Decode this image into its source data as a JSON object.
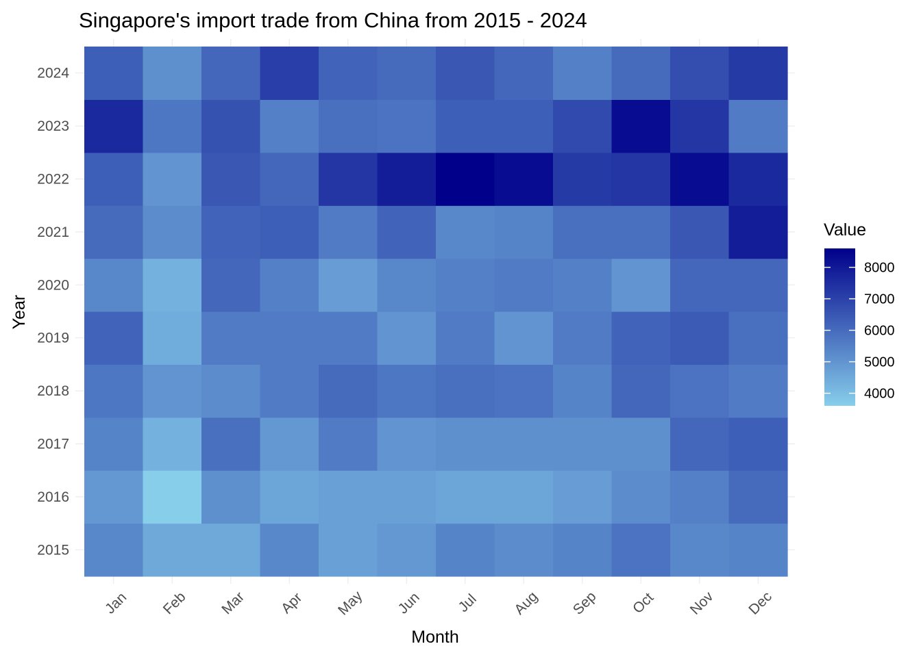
{
  "chart_data": {
    "type": "heatmap",
    "title": "Singapore's import trade from China from 2015 - 2024",
    "xlabel": "Month",
    "ylabel": "Year",
    "legend_title": "Value",
    "legend_position": "right",
    "x": [
      "Jan",
      "Feb",
      "Mar",
      "Apr",
      "May",
      "Jun",
      "Jul",
      "Aug",
      "Sep",
      "Oct",
      "Nov",
      "Dec"
    ],
    "y": [
      "2015",
      "2016",
      "2017",
      "2018",
      "2019",
      "2020",
      "2021",
      "2022",
      "2023",
      "2024"
    ],
    "values": [
      [
        5300,
        4500,
        4500,
        5300,
        4700,
        4900,
        5400,
        5200,
        5400,
        5800,
        5300,
        5400
      ],
      [
        4900,
        3600,
        5100,
        4600,
        4700,
        4700,
        4600,
        4600,
        4800,
        5200,
        5500,
        6000
      ],
      [
        5400,
        4300,
        5900,
        4900,
        5600,
        5000,
        5100,
        5100,
        5100,
        5100,
        6100,
        6300
      ],
      [
        5700,
        5000,
        5200,
        5600,
        6000,
        5700,
        5900,
        5800,
        5400,
        6100,
        5800,
        5600
      ],
      [
        6200,
        4400,
        5600,
        5600,
        5600,
        5000,
        5600,
        5000,
        5600,
        6200,
        6400,
        5900
      ],
      [
        5300,
        4300,
        6100,
        5500,
        4800,
        5300,
        5500,
        5600,
        5500,
        5000,
        6100,
        6100
      ],
      [
        6000,
        5200,
        6200,
        6300,
        5600,
        6200,
        5300,
        5400,
        5900,
        5900,
        6500,
        7900
      ],
      [
        6300,
        5000,
        6500,
        6100,
        7300,
        7900,
        8600,
        8300,
        7200,
        7300,
        8300,
        7600
      ],
      [
        7600,
        5700,
        6600,
        5500,
        5900,
        5800,
        6300,
        6300,
        6800,
        8300,
        7300,
        5600
      ],
      [
        6300,
        5100,
        6100,
        7100,
        6200,
        6000,
        6500,
        6100,
        5500,
        6000,
        6700,
        7200
      ]
    ],
    "color_scale": {
      "low": "#87CEEB",
      "high": "#00008B",
      "min": 3600,
      "max": 8600
    },
    "legend_ticks": [
      4000,
      5000,
      6000,
      7000,
      8000
    ]
  }
}
